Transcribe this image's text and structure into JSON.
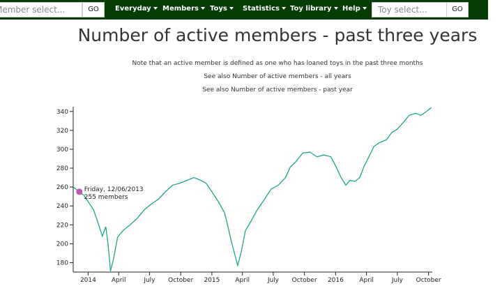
{
  "nav": {
    "member_search": {
      "placeholder": "Member select...",
      "button": "GO"
    },
    "menu": [
      "Everyday",
      "Members",
      "Toys",
      "Statistics",
      "Toy library",
      "Help"
    ],
    "toy_search": {
      "placeholder": "Toy select...",
      "button": "GO"
    }
  },
  "header": {
    "title": "Number of active members - past three years",
    "note": "Note that an active member is defined as one who has loaned toys in the past three months",
    "links": [
      "See also Number of active members - all years",
      "See also Number of active members - past year"
    ]
  },
  "chart_data": {
    "type": "line",
    "x": [
      "2013-11-18",
      "2013-12-06",
      "2013-12-20",
      "2014-01-17",
      "2014-02-03",
      "2014-02-12",
      "2014-02-22",
      "2014-03-01",
      "2014-03-08",
      "2014-03-17",
      "2014-03-29",
      "2014-04-14",
      "2014-05-05",
      "2014-05-26",
      "2014-06-16",
      "2014-07-06",
      "2014-07-27",
      "2014-08-17",
      "2014-09-07",
      "2014-09-28",
      "2014-10-19",
      "2014-11-09",
      "2014-11-30",
      "2014-12-15",
      "2015-01-01",
      "2015-01-21",
      "2015-02-07",
      "2015-02-15",
      "2015-02-27",
      "2015-03-10",
      "2015-03-18",
      "2015-03-29",
      "2015-04-10",
      "2015-04-25",
      "2015-05-15",
      "2015-06-05",
      "2015-06-25",
      "2015-07-16",
      "2015-08-06",
      "2015-08-20",
      "2015-09-06",
      "2015-09-26",
      "2015-10-17",
      "2015-11-07",
      "2015-11-27",
      "2015-12-18",
      "2016-01-03",
      "2016-01-17",
      "2016-01-31",
      "2016-02-12",
      "2016-02-27",
      "2016-03-12",
      "2016-03-25",
      "2016-04-08",
      "2016-04-23",
      "2016-05-09",
      "2016-05-30",
      "2016-06-15",
      "2016-06-30",
      "2016-07-20",
      "2016-08-05",
      "2016-08-24",
      "2016-09-09",
      "2016-09-25",
      "2016-10-09"
    ],
    "series": [
      {
        "color": "#1aa58f",
        "values": [
          260,
          255,
          251,
          236,
          218,
          208,
          218,
          199,
          171,
          184,
          207,
          214,
          220,
          227,
          236,
          242,
          247,
          255,
          262,
          264,
          267,
          270,
          267,
          264,
          255,
          244,
          233,
          222,
          203,
          188,
          177,
          192,
          214,
          223,
          236,
          247,
          258,
          262,
          270,
          281,
          287,
          296,
          297,
          292,
          294,
          292,
          281,
          270,
          262,
          267,
          266,
          270,
          282,
          292,
          303,
          307,
          310,
          318,
          321,
          329,
          336,
          338,
          336,
          340,
          344
        ]
      }
    ],
    "xlim": [
      "2013-11-18",
      "2016-10-12"
    ],
    "xticks": [
      {
        "value": "2014-01-01",
        "label": "2014"
      },
      {
        "value": "2014-04-01",
        "label": "April"
      },
      {
        "value": "2014-07-01",
        "label": "July"
      },
      {
        "value": "2014-10-01",
        "label": "October"
      },
      {
        "value": "2015-01-01",
        "label": "2015"
      },
      {
        "value": "2015-04-01",
        "label": "April"
      },
      {
        "value": "2015-07-01",
        "label": "July"
      },
      {
        "value": "2015-10-01",
        "label": "October"
      },
      {
        "value": "2016-01-01",
        "label": "2016"
      },
      {
        "value": "2016-04-01",
        "label": "April"
      },
      {
        "value": "2016-07-01",
        "label": "July"
      },
      {
        "value": "2016-10-01",
        "label": "October"
      }
    ],
    "ylim": [
      170,
      345
    ],
    "yticks": [
      180,
      200,
      220,
      240,
      260,
      280,
      300,
      320,
      340
    ],
    "tooltip": {
      "x": "2013-12-06",
      "value": 255,
      "date_label": "Friday, 12/06/2013",
      "value_label": "255 members",
      "color": "#c653b8"
    }
  }
}
